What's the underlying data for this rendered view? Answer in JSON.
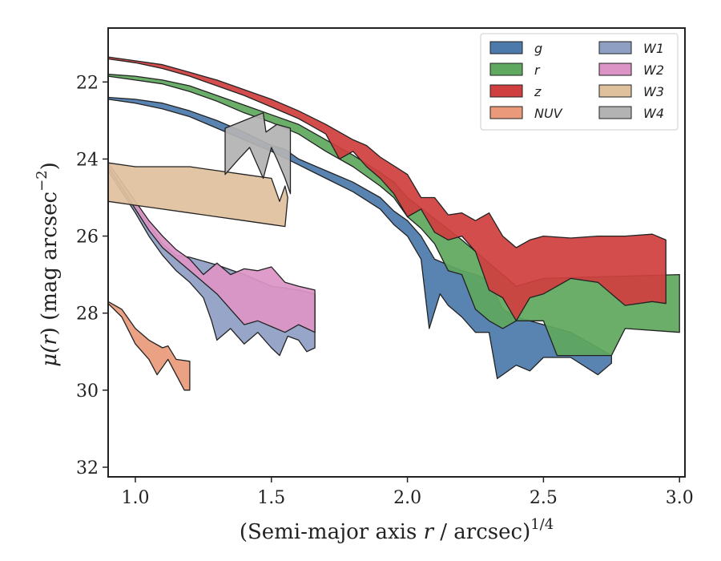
{
  "chart_data": {
    "type": "area",
    "xlabel": "(Semi-major axis r / arcsec)^1/4",
    "xlabel_parts": {
      "base": "(Semi-major axis ",
      "var": "r",
      "unit": " / arcsec)",
      "sup": "1/4"
    },
    "ylabel": "μ(r) (mag arcsec^−2)",
    "ylabel_parts": {
      "mu": "μ(",
      "var": "r",
      "rest": ") (mag arcsec",
      "sup": "−2",
      "close": ")"
    },
    "xlim": [
      0.9,
      3.02
    ],
    "ylim": [
      32.25,
      20.6
    ],
    "y_inverted": true,
    "x_ticks": [
      "1.0",
      "1.5",
      "2.0",
      "2.5",
      "3.0"
    ],
    "y_ticks": [
      "22",
      "24",
      "26",
      "28",
      "30",
      "32"
    ],
    "legend_position": "top-right",
    "legend_columns": 2,
    "grid": false,
    "series": [
      {
        "name": "g",
        "color": "#4c7aab",
        "upper": [
          [
            0.9,
            22.4
          ],
          [
            1.0,
            22.45
          ],
          [
            1.1,
            22.55
          ],
          [
            1.2,
            22.75
          ],
          [
            1.3,
            23.0
          ],
          [
            1.4,
            23.3
          ],
          [
            1.5,
            23.65
          ],
          [
            1.55,
            23.75
          ],
          [
            1.6,
            24.0
          ],
          [
            1.7,
            24.3
          ],
          [
            1.8,
            24.6
          ],
          [
            1.9,
            25.0
          ],
          [
            1.95,
            25.35
          ],
          [
            2.0,
            25.6
          ],
          [
            2.05,
            26.0
          ],
          [
            2.1,
            26.6
          ],
          [
            2.15,
            26.75
          ],
          [
            2.2,
            26.9
          ],
          [
            2.25,
            27.0
          ],
          [
            2.3,
            27.15
          ],
          [
            2.35,
            27.9
          ],
          [
            2.4,
            28.1
          ],
          [
            2.5,
            28.3
          ],
          [
            2.6,
            28.5
          ],
          [
            2.7,
            28.9
          ],
          [
            2.75,
            29.1
          ]
        ],
        "lower": [
          [
            0.9,
            22.45
          ],
          [
            1.0,
            22.55
          ],
          [
            1.1,
            22.7
          ],
          [
            1.2,
            22.9
          ],
          [
            1.3,
            23.2
          ],
          [
            1.4,
            23.5
          ],
          [
            1.5,
            23.8
          ],
          [
            1.6,
            24.15
          ],
          [
            1.7,
            24.5
          ],
          [
            1.8,
            24.85
          ],
          [
            1.9,
            25.3
          ],
          [
            1.95,
            25.7
          ],
          [
            2.0,
            26.0
          ],
          [
            2.05,
            26.6
          ],
          [
            2.08,
            28.4
          ],
          [
            2.12,
            27.5
          ],
          [
            2.15,
            27.8
          ],
          [
            2.2,
            28.1
          ],
          [
            2.25,
            28.5
          ],
          [
            2.3,
            28.5
          ],
          [
            2.33,
            29.7
          ],
          [
            2.4,
            29.35
          ],
          [
            2.45,
            29.5
          ],
          [
            2.5,
            29.15
          ],
          [
            2.6,
            29.15
          ],
          [
            2.7,
            29.6
          ],
          [
            2.75,
            29.3
          ]
        ]
      },
      {
        "name": "r",
        "color": "#5fa85f",
        "upper": [
          [
            0.9,
            21.8
          ],
          [
            1.0,
            21.85
          ],
          [
            1.1,
            21.95
          ],
          [
            1.2,
            22.1
          ],
          [
            1.3,
            22.35
          ],
          [
            1.4,
            22.6
          ],
          [
            1.5,
            22.85
          ],
          [
            1.6,
            23.1
          ],
          [
            1.7,
            23.5
          ],
          [
            1.8,
            23.9
          ],
          [
            1.9,
            24.35
          ],
          [
            1.95,
            24.6
          ],
          [
            2.0,
            25.0
          ],
          [
            2.1,
            25.55
          ],
          [
            2.2,
            26.1
          ],
          [
            2.25,
            26.4
          ],
          [
            2.3,
            26.7
          ],
          [
            2.35,
            27.0
          ],
          [
            2.4,
            27.3
          ],
          [
            2.5,
            27.1
          ],
          [
            2.75,
            27.05
          ],
          [
            3.0,
            27.0
          ]
        ],
        "lower": [
          [
            0.9,
            21.85
          ],
          [
            1.0,
            21.95
          ],
          [
            1.1,
            22.05
          ],
          [
            1.2,
            22.25
          ],
          [
            1.3,
            22.5
          ],
          [
            1.4,
            22.8
          ],
          [
            1.5,
            23.05
          ],
          [
            1.6,
            23.35
          ],
          [
            1.7,
            23.8
          ],
          [
            1.8,
            24.2
          ],
          [
            1.9,
            24.7
          ],
          [
            1.95,
            25.0
          ],
          [
            2.0,
            25.5
          ],
          [
            2.05,
            25.8
          ],
          [
            2.1,
            26.2
          ],
          [
            2.15,
            26.9
          ],
          [
            2.2,
            27.0
          ],
          [
            2.25,
            27.9
          ],
          [
            2.3,
            28.2
          ],
          [
            2.35,
            28.4
          ],
          [
            2.4,
            28.2
          ],
          [
            2.5,
            28.2
          ],
          [
            2.55,
            29.1
          ],
          [
            2.75,
            29.1
          ],
          [
            2.8,
            28.4
          ],
          [
            3.0,
            28.5
          ]
        ]
      },
      {
        "name": "z",
        "color": "#d03f3f",
        "upper": [
          [
            0.9,
            21.35
          ],
          [
            1.0,
            21.45
          ],
          [
            1.1,
            21.55
          ],
          [
            1.2,
            21.75
          ],
          [
            1.3,
            21.95
          ],
          [
            1.4,
            22.2
          ],
          [
            1.5,
            22.45
          ],
          [
            1.6,
            22.75
          ],
          [
            1.7,
            23.1
          ],
          [
            1.8,
            23.5
          ],
          [
            1.85,
            23.65
          ],
          [
            1.9,
            23.95
          ],
          [
            2.0,
            24.4
          ],
          [
            2.05,
            25.0
          ],
          [
            2.1,
            25.0
          ],
          [
            2.15,
            25.45
          ],
          [
            2.2,
            25.4
          ],
          [
            2.25,
            25.6
          ],
          [
            2.3,
            25.4
          ],
          [
            2.35,
            26.0
          ],
          [
            2.4,
            26.3
          ],
          [
            2.45,
            26.1
          ],
          [
            2.5,
            26.0
          ],
          [
            2.6,
            26.05
          ],
          [
            2.7,
            26.0
          ],
          [
            2.8,
            26.0
          ],
          [
            2.9,
            25.95
          ],
          [
            2.95,
            26.1
          ]
        ],
        "lower": [
          [
            0.9,
            21.4
          ],
          [
            1.0,
            21.5
          ],
          [
            1.1,
            21.65
          ],
          [
            1.2,
            21.85
          ],
          [
            1.3,
            22.1
          ],
          [
            1.4,
            22.35
          ],
          [
            1.5,
            22.65
          ],
          [
            1.6,
            22.95
          ],
          [
            1.7,
            23.35
          ],
          [
            1.75,
            24.0
          ],
          [
            1.8,
            23.8
          ],
          [
            1.85,
            24.2
          ],
          [
            1.9,
            24.5
          ],
          [
            1.95,
            24.9
          ],
          [
            2.0,
            25.5
          ],
          [
            2.05,
            25.3
          ],
          [
            2.1,
            25.9
          ],
          [
            2.15,
            26.1
          ],
          [
            2.2,
            26.0
          ],
          [
            2.25,
            26.4
          ],
          [
            2.3,
            27.4
          ],
          [
            2.35,
            27.6
          ],
          [
            2.4,
            28.2
          ],
          [
            2.45,
            27.6
          ],
          [
            2.5,
            27.5
          ],
          [
            2.6,
            27.1
          ],
          [
            2.7,
            27.2
          ],
          [
            2.8,
            27.8
          ],
          [
            2.9,
            27.7
          ],
          [
            2.95,
            27.75
          ]
        ]
      },
      {
        "name": "NUV",
        "color": "#ea9a7a",
        "upper": [
          [
            0.9,
            27.7
          ],
          [
            0.95,
            27.9
          ],
          [
            1.0,
            28.4
          ],
          [
            1.05,
            28.7
          ],
          [
            1.1,
            28.9
          ],
          [
            1.12,
            28.85
          ],
          [
            1.15,
            29.2
          ],
          [
            1.2,
            29.25
          ]
        ],
        "lower": [
          [
            0.9,
            27.75
          ],
          [
            0.95,
            28.1
          ],
          [
            1.0,
            28.8
          ],
          [
            1.05,
            29.2
          ],
          [
            1.08,
            29.6
          ],
          [
            1.12,
            29.2
          ],
          [
            1.15,
            29.6
          ],
          [
            1.18,
            30.0
          ],
          [
            1.2,
            30.0
          ]
        ]
      },
      {
        "name": "W1",
        "color": "#8f9fc4",
        "upper": [
          [
            0.9,
            24.2
          ],
          [
            1.0,
            25.2
          ],
          [
            1.05,
            25.7
          ],
          [
            1.1,
            26.2
          ],
          [
            1.15,
            26.5
          ],
          [
            1.2,
            26.55
          ],
          [
            1.3,
            26.75
          ],
          [
            1.4,
            27.0
          ],
          [
            1.5,
            27.3
          ],
          [
            1.6,
            27.4
          ],
          [
            1.66,
            27.5
          ]
        ],
        "lower": [
          [
            0.9,
            24.3
          ],
          [
            1.0,
            25.4
          ],
          [
            1.05,
            26.0
          ],
          [
            1.1,
            26.5
          ],
          [
            1.15,
            26.9
          ],
          [
            1.2,
            27.2
          ],
          [
            1.25,
            27.6
          ],
          [
            1.28,
            28.2
          ],
          [
            1.3,
            28.7
          ],
          [
            1.35,
            28.4
          ],
          [
            1.4,
            28.8
          ],
          [
            1.45,
            28.5
          ],
          [
            1.5,
            28.9
          ],
          [
            1.53,
            29.1
          ],
          [
            1.56,
            28.6
          ],
          [
            1.6,
            28.7
          ],
          [
            1.63,
            29.0
          ],
          [
            1.66,
            28.9
          ]
        ]
      },
      {
        "name": "W2",
        "color": "#dc94c6",
        "upper": [
          [
            0.9,
            24.1
          ],
          [
            1.0,
            25.1
          ],
          [
            1.05,
            25.6
          ],
          [
            1.1,
            26.0
          ],
          [
            1.15,
            26.35
          ],
          [
            1.2,
            26.6
          ],
          [
            1.25,
            27.0
          ],
          [
            1.3,
            26.7
          ],
          [
            1.35,
            27.0
          ],
          [
            1.4,
            26.85
          ],
          [
            1.45,
            26.9
          ],
          [
            1.5,
            26.8
          ],
          [
            1.55,
            27.2
          ],
          [
            1.6,
            27.3
          ],
          [
            1.66,
            27.4
          ]
        ],
        "lower": [
          [
            0.9,
            24.2
          ],
          [
            1.0,
            25.3
          ],
          [
            1.05,
            25.85
          ],
          [
            1.1,
            26.3
          ],
          [
            1.15,
            26.6
          ],
          [
            1.2,
            26.9
          ],
          [
            1.25,
            27.2
          ],
          [
            1.3,
            27.5
          ],
          [
            1.35,
            27.9
          ],
          [
            1.4,
            28.3
          ],
          [
            1.45,
            28.2
          ],
          [
            1.5,
            28.35
          ],
          [
            1.55,
            28.5
          ],
          [
            1.6,
            28.3
          ],
          [
            1.66,
            28.5
          ]
        ]
      },
      {
        "name": "W3",
        "color": "#dfc19e",
        "upper": [
          [
            0.9,
            24.1
          ],
          [
            1.0,
            24.2
          ],
          [
            1.1,
            24.2
          ],
          [
            1.2,
            24.2
          ],
          [
            1.3,
            24.3
          ],
          [
            1.4,
            24.4
          ],
          [
            1.5,
            24.5
          ],
          [
            1.53,
            25.1
          ],
          [
            1.55,
            24.7
          ],
          [
            1.56,
            25.0
          ]
        ],
        "lower": [
          [
            0.9,
            25.1
          ],
          [
            1.0,
            25.2
          ],
          [
            1.1,
            25.3
          ],
          [
            1.2,
            25.4
          ],
          [
            1.3,
            25.5
          ],
          [
            1.4,
            25.6
          ],
          [
            1.5,
            25.7
          ],
          [
            1.55,
            25.75
          ]
        ]
      },
      {
        "name": "W4",
        "color": "#b3b3b3",
        "upper": [
          [
            1.33,
            23.2
          ],
          [
            1.4,
            23.0
          ],
          [
            1.47,
            22.8
          ],
          [
            1.48,
            23.3
          ],
          [
            1.52,
            23.1
          ],
          [
            1.57,
            23.2
          ]
        ],
        "lower": [
          [
            1.33,
            24.4
          ],
          [
            1.38,
            24.0
          ],
          [
            1.42,
            23.7
          ],
          [
            1.47,
            24.5
          ],
          [
            1.5,
            23.7
          ],
          [
            1.52,
            24.0
          ],
          [
            1.55,
            24.5
          ],
          [
            1.57,
            24.9
          ]
        ]
      }
    ]
  }
}
